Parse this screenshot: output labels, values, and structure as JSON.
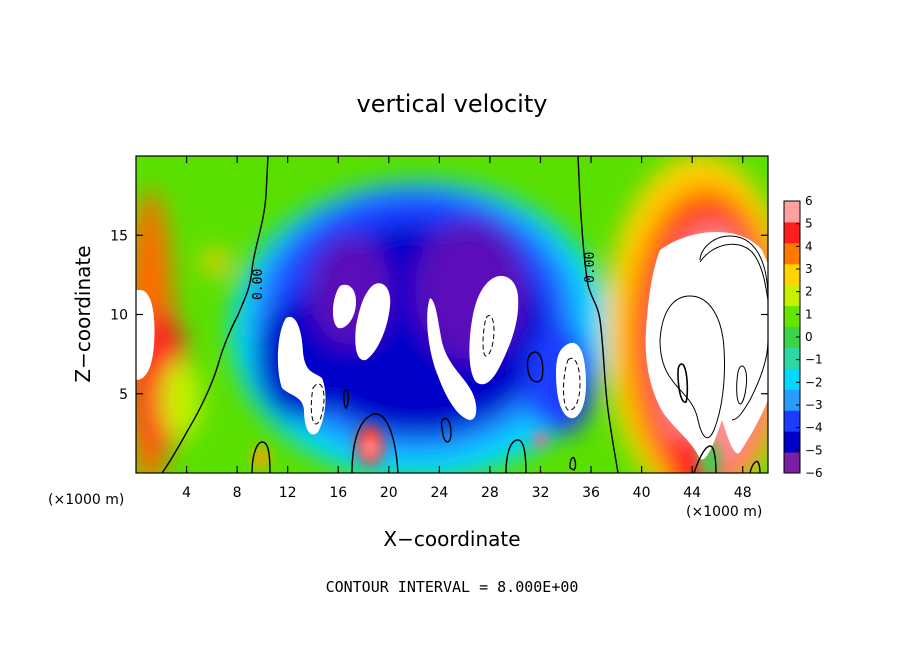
{
  "chart_data": {
    "type": "heatmap",
    "title": "vertical velocity",
    "xlabel": "X−coordinate",
    "ylabel": "Z−coordinate",
    "x_unit": "(×1000 m)",
    "x_unit_right": "(×1000 m)",
    "xlim": [
      0,
      50
    ],
    "ylim": [
      0,
      20
    ],
    "xticks": [
      4,
      8,
      12,
      16,
      20,
      24,
      28,
      32,
      36,
      40,
      44,
      48
    ],
    "yticks": [
      5,
      10,
      15
    ],
    "colorbar": {
      "ticks": [
        6,
        5,
        4,
        3,
        2,
        1,
        0,
        -1,
        -2,
        -3,
        -4,
        -5,
        -6
      ],
      "tick_labels": [
        "6",
        "5",
        "4",
        "3",
        "2",
        "1",
        "0",
        "−1",
        "−2",
        "−3",
        "−4",
        "−5",
        "−6"
      ],
      "range": [
        -6,
        6
      ],
      "colors": [
        "#7a1fa2",
        "#0000c8",
        "#1a3cff",
        "#2a9cff",
        "#00d8ff",
        "#2cd8a0",
        "#3cd24a",
        "#64e600",
        "#c8f000",
        "#ffd200",
        "#ff7800",
        "#ff1e1e",
        "#ffa0a0"
      ]
    },
    "contour_labels": [
      "0.00",
      "0.00"
    ],
    "contour_interval_label": "CONTOUR INTERVAL = 8.000E+00",
    "features": [
      {
        "x": 2,
        "z": 7,
        "value": 4.5
      },
      {
        "x": 6.5,
        "z": 14,
        "value": 2.5
      },
      {
        "x": 10,
        "z": 0.8,
        "value": 3.5
      },
      {
        "x": 18.5,
        "z": 1.3,
        "value": 5
      },
      {
        "x": 14,
        "z": 7,
        "value": -8
      },
      {
        "x": 16.5,
        "z": 10,
        "value": -8
      },
      {
        "x": 19,
        "z": 10,
        "value": -8
      },
      {
        "x": 24,
        "z": 7,
        "value": -8
      },
      {
        "x": 28,
        "z": 9,
        "value": -8
      },
      {
        "x": 34.5,
        "z": 6.5,
        "value": -8
      },
      {
        "x": 46,
        "z": 9,
        "value": 8
      },
      {
        "x": 20,
        "z": 9,
        "value": -4
      },
      {
        "x": 30.5,
        "z": 12,
        "value": -3
      },
      {
        "x": 43,
        "z": 11,
        "value": 4
      }
    ]
  }
}
